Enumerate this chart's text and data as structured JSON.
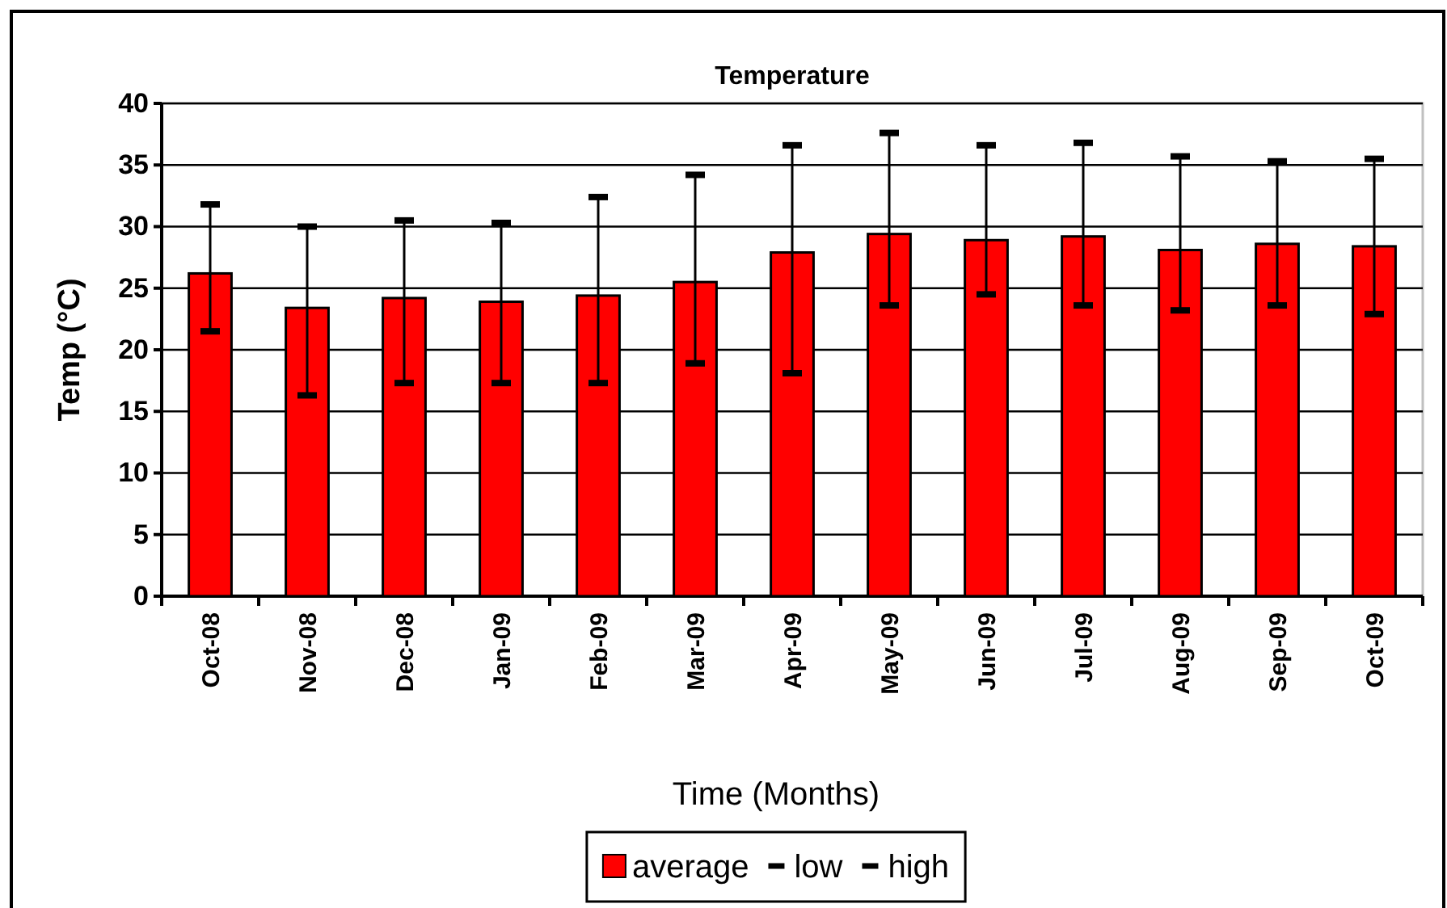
{
  "chart_data": {
    "type": "bar",
    "title": "Temperature",
    "xlabel": "Time (Months)",
    "ylabel": "Temp (°C)",
    "categories": [
      "Oct-08",
      "Nov-08",
      "Dec-08",
      "Jan-09",
      "Feb-09",
      "Mar-09",
      "Apr-09",
      "May-09",
      "Jun-09",
      "Jul-09",
      "Aug-09",
      "Sep-09",
      "Oct-09"
    ],
    "series": [
      {
        "name": "average",
        "type": "bar",
        "color": "#ff0000",
        "values": [
          26.2,
          23.4,
          24.2,
          23.9,
          24.4,
          25.5,
          27.9,
          29.4,
          28.9,
          29.2,
          28.1,
          28.6,
          28.4
        ]
      },
      {
        "name": "low",
        "type": "scatter",
        "color": "#000000",
        "x": [
          "Oct-08",
          "Nov-08",
          "Dec-08",
          "Jan-09",
          "Feb-09",
          "Mar-09",
          "Apr-09",
          "May-09",
          "Jun-09",
          "Jul-09",
          "Aug-09",
          "Sep-09",
          "Oct-09"
        ],
        "values": [
          21.5,
          16.3,
          17.3,
          17.3,
          17.3,
          18.9,
          18.1,
          23.6,
          24.5,
          23.6,
          23.2,
          23.6,
          22.9
        ]
      },
      {
        "name": "high",
        "type": "scatter",
        "color": "#000000",
        "x": [
          "Oct-08",
          "Nov-08",
          "Dec-08",
          "Jan-09",
          "Feb-09",
          "Mar-09",
          "Apr-09",
          "May-09",
          "Jun-09",
          "Jul-09",
          "Aug-09",
          "Sep-09",
          "Oct-09"
        ],
        "values": [
          31.8,
          30.0,
          30.5,
          30.3,
          32.4,
          34.2,
          36.6,
          37.6,
          36.6,
          36.8,
          35.7,
          35.3,
          35.5
        ]
      }
    ],
    "ylim": [
      0,
      40
    ],
    "yticks": [
      0,
      5,
      10,
      15,
      20,
      25,
      30,
      35,
      40
    ],
    "grid": "y",
    "legend": "bottom"
  }
}
